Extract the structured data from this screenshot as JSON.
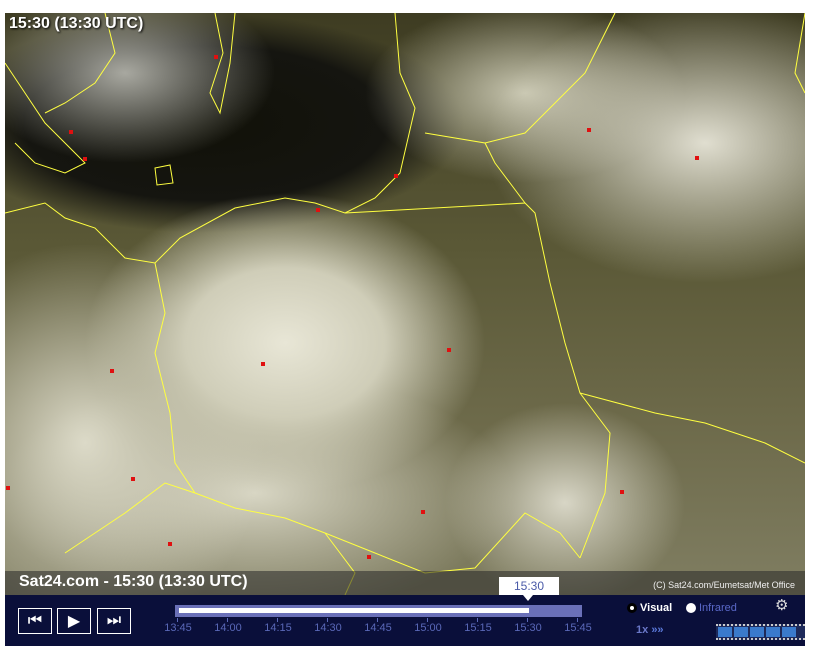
{
  "map": {
    "time_overlay": "15:30 (13:30 UTC)",
    "caption": "Sat24.com - 15:30 (13:30 UTC)",
    "copyright": "(C) Sat24.com/Eumetsat/Met Office",
    "border_color": "#ffff40",
    "city_color": "#e01010"
  },
  "timeline": {
    "current": "15:30",
    "ticks": [
      "13:45",
      "14:00",
      "14:15",
      "14:30",
      "14:45",
      "15:00",
      "15:15",
      "15:30",
      "15:45"
    ],
    "progress_percent": 87.5
  },
  "controls": {
    "first_icon": "skip-back-icon",
    "play_icon": "play-icon",
    "last_icon": "skip-forward-icon",
    "visual_label": "Visual",
    "infrared_label": "Infrared",
    "selected_mode": "Visual",
    "speed_label": "1x",
    "settings_icon": "gears-icon"
  }
}
